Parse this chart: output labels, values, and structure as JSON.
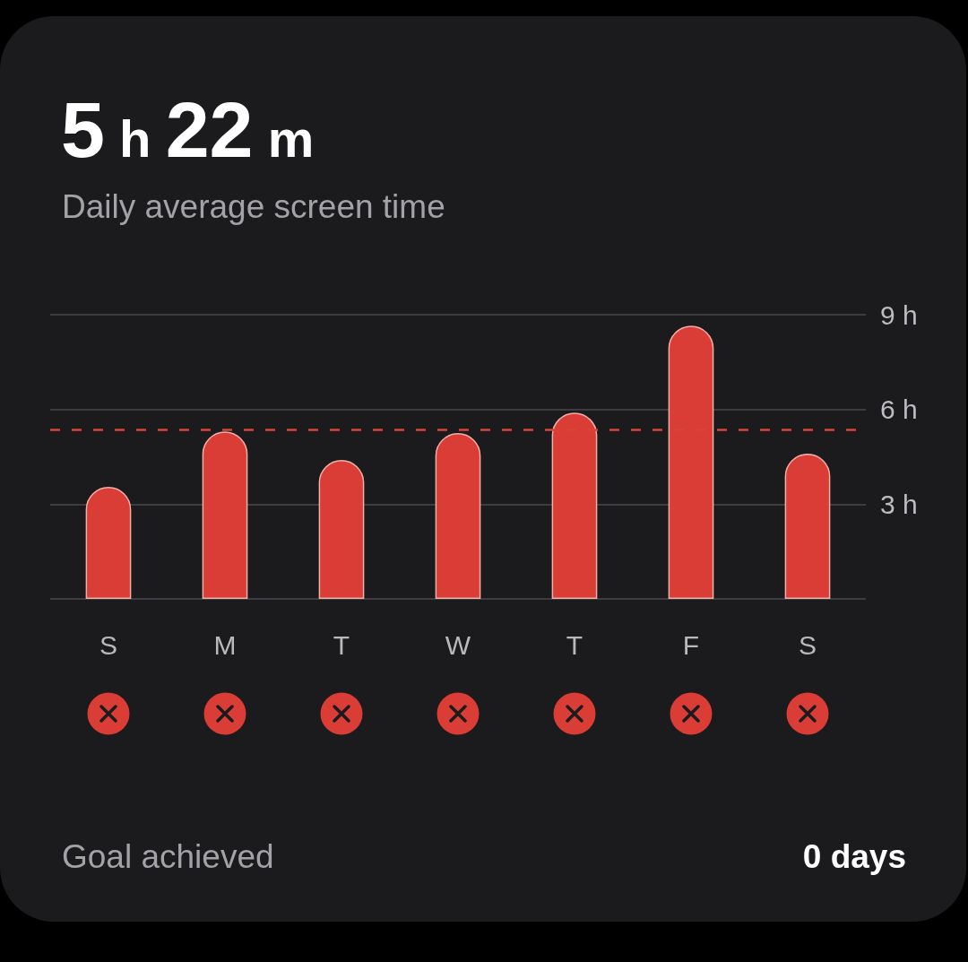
{
  "chart_data": {
    "type": "bar",
    "title": "5 h 22 m",
    "subtitle": "Daily average screen time",
    "categories": [
      "S",
      "M",
      "T",
      "W",
      "T",
      "F",
      "S"
    ],
    "values": [
      3.55,
      5.3,
      4.4,
      5.25,
      5.9,
      8.65,
      4.6
    ],
    "color": "#d93d35",
    "ylim": [
      0,
      9
    ],
    "yticks": [
      {
        "value": 0,
        "label": null
      },
      {
        "value": 3,
        "label": "3 h"
      },
      {
        "value": 6,
        "label": "6 h"
      },
      {
        "value": 9,
        "label": "9 h"
      }
    ],
    "grid": "y",
    "ref_lines": [
      {
        "axis": "y",
        "value": 5.37,
        "color": "#d8433a",
        "line_style": "dashed"
      }
    ],
    "annotations": [
      "Goal achieved",
      "0 days"
    ]
  }
}
